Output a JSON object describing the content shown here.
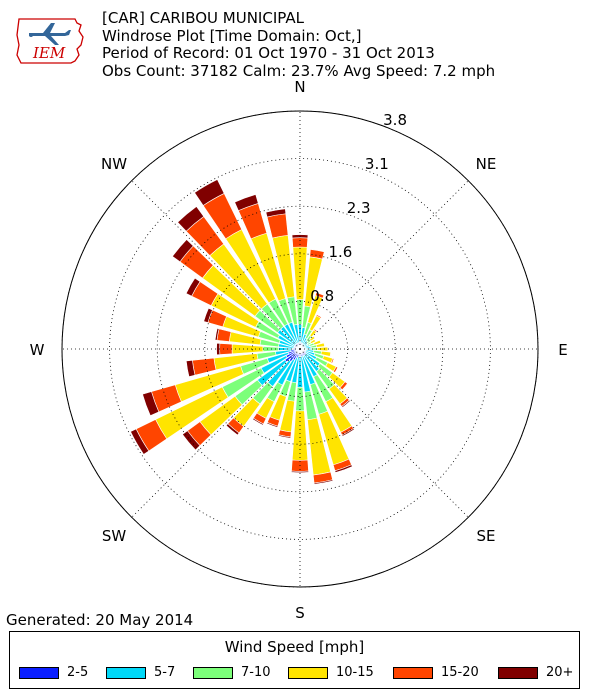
{
  "header": {
    "line1": "[CAR] CARIBOU MUNICIPAL",
    "line2": "Windrose Plot [Time Domain: Oct,]",
    "line3": "Period of Record: 01 Oct 1970 - 31 Oct 2013",
    "line4": "Obs Count: 37182 Calm: 23.7% Avg Speed: 7.2 mph"
  },
  "logo": {
    "text": "IEM",
    "icon": "iem-airplane-logo"
  },
  "footer": {
    "generated": "Generated: 20 May 2014"
  },
  "colors": {
    "background": "#ffffff",
    "axis": "#000000",
    "bins": [
      "#0a1eff",
      "#00d8f8",
      "#7cff7a",
      "#ffe400",
      "#ff4500",
      "#800000"
    ]
  },
  "chart_data": {
    "type": "windrose",
    "title": "",
    "radial_ticks": [
      "0.8",
      "1.6",
      "2.3",
      "3.1",
      "3.8"
    ],
    "radial_tick_values": [
      0.77,
      1.54,
      2.31,
      3.08,
      3.85
    ],
    "rmax": 3.85,
    "grid": true,
    "direction_labels": [
      "N",
      "NE",
      "E",
      "SE",
      "S",
      "SW",
      "W",
      "NW"
    ],
    "directions_deg": [
      0,
      10,
      20,
      30,
      40,
      50,
      60,
      70,
      80,
      90,
      100,
      110,
      120,
      130,
      140,
      150,
      160,
      170,
      180,
      190,
      200,
      210,
      220,
      230,
      240,
      250,
      260,
      270,
      280,
      290,
      300,
      310,
      320,
      330,
      340,
      350
    ],
    "legend_title": "Wind Speed [mph]",
    "bins": [
      "2-5",
      "5-7",
      "7-10",
      "10-15",
      "15-20",
      "20+"
    ],
    "cumulative_percent": [
      [
        0.1,
        0.4,
        0.8,
        1.65,
        1.8,
        1.85
      ],
      [
        0.1,
        0.35,
        0.7,
        1.5,
        1.62,
        1.62
      ],
      [
        0.1,
        0.25,
        0.45,
        0.9,
        0.95,
        0.95
      ],
      [
        0.08,
        0.2,
        0.35,
        0.6,
        0.62,
        0.62
      ],
      [
        0.07,
        0.17,
        0.27,
        0.38,
        0.4,
        0.4
      ],
      [
        0.06,
        0.15,
        0.22,
        0.3,
        0.31,
        0.31
      ],
      [
        0.06,
        0.14,
        0.2,
        0.28,
        0.29,
        0.29
      ],
      [
        0.06,
        0.16,
        0.24,
        0.35,
        0.36,
        0.36
      ],
      [
        0.07,
        0.18,
        0.27,
        0.4,
        0.41,
        0.41
      ],
      [
        0.07,
        0.18,
        0.28,
        0.45,
        0.46,
        0.46
      ],
      [
        0.08,
        0.22,
        0.35,
        0.5,
        0.51,
        0.51
      ],
      [
        0.09,
        0.25,
        0.4,
        0.55,
        0.57,
        0.57
      ],
      [
        0.1,
        0.3,
        0.5,
        0.65,
        0.68,
        0.68
      ],
      [
        0.12,
        0.4,
        0.65,
        0.9,
        0.95,
        0.96
      ],
      [
        0.12,
        0.45,
        0.8,
        1.1,
        1.15,
        1.17
      ],
      [
        0.12,
        0.5,
        0.95,
        1.5,
        1.55,
        1.57
      ],
      [
        0.12,
        0.6,
        1.1,
        1.95,
        2.05,
        2.08
      ],
      [
        0.12,
        0.7,
        1.15,
        2.05,
        2.18,
        2.2
      ],
      [
        0.12,
        0.62,
        1.0,
        1.8,
        1.98,
        2.0
      ],
      [
        0.12,
        0.55,
        0.85,
        1.35,
        1.43,
        1.45
      ],
      [
        0.15,
        0.55,
        0.8,
        1.2,
        1.3,
        1.32
      ],
      [
        0.2,
        0.65,
        0.95,
        1.25,
        1.35,
        1.37
      ],
      [
        0.25,
        0.75,
        1.1,
        1.55,
        1.68,
        1.72
      ],
      [
        0.3,
        0.85,
        1.3,
        2.0,
        2.25,
        2.35
      ],
      [
        0.25,
        0.7,
        1.4,
        2.6,
        2.95,
        3.05
      ],
      [
        0.2,
        0.55,
        1.0,
        2.1,
        2.5,
        2.65
      ],
      [
        0.15,
        0.4,
        0.7,
        1.4,
        1.75,
        1.85
      ],
      [
        0.12,
        0.35,
        0.6,
        1.1,
        1.3,
        1.35
      ],
      [
        0.1,
        0.35,
        0.65,
        1.15,
        1.35,
        1.38
      ],
      [
        0.1,
        0.35,
        0.7,
        1.3,
        1.55,
        1.62
      ],
      [
        0.1,
        0.4,
        0.8,
        1.6,
        1.95,
        2.05
      ],
      [
        0.1,
        0.45,
        0.9,
        1.95,
        2.4,
        2.55
      ],
      [
        0.1,
        0.45,
        0.9,
        2.1,
        2.65,
        2.85
      ],
      [
        0.1,
        0.45,
        0.9,
        2.15,
        2.8,
        3.05
      ],
      [
        0.1,
        0.45,
        0.85,
        1.95,
        2.45,
        2.6
      ],
      [
        0.1,
        0.4,
        0.85,
        1.85,
        2.2,
        2.28
      ]
    ]
  }
}
